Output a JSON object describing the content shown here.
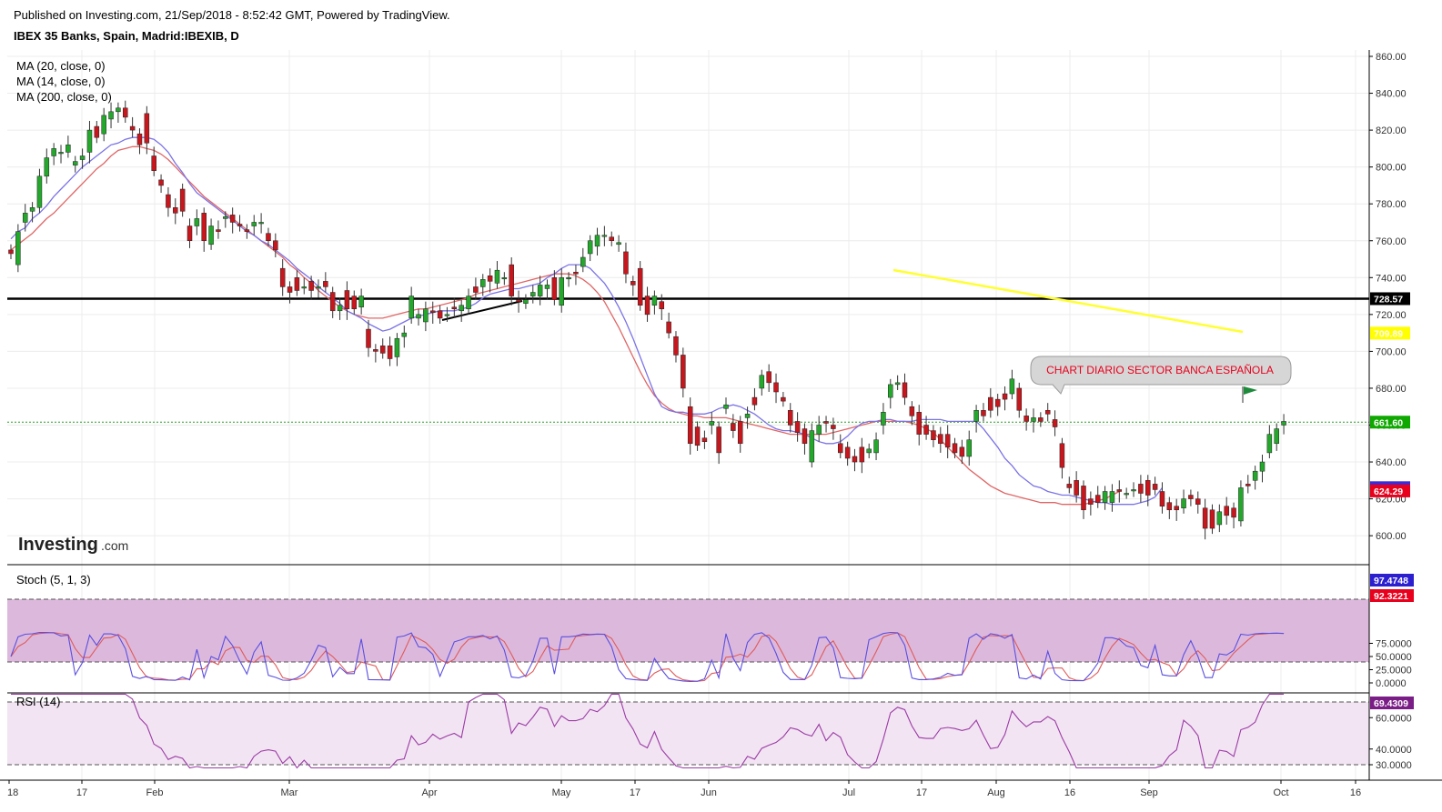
{
  "header": {
    "published": "Published on Investing.com, 21/Sep/2018 - 8:52:42 GMT, Powered by TradingView.",
    "symbol": "IBEX 35 Banks, Spain, Madrid:IBEXIB, D"
  },
  "logo": {
    "brand": "Investing",
    "suffix": ".com"
  },
  "chart_data": [
    {
      "type": "candlestick",
      "title": "IBEX 35 Banks, Spain, Madrid:IBEXIB, D",
      "indicators": [
        "MA (20, close, 0)",
        "MA (14, close, 0)",
        "MA (200, close, 0)"
      ],
      "ylim": [
        595,
        862
      ],
      "y_ticks": [
        "860.00",
        "840.00",
        "820.00",
        "800.00",
        "780.00",
        "760.00",
        "740.00",
        "720.00",
        "700.00",
        "680.00",
        "660.00",
        "640.00",
        "620.00",
        "600.00"
      ],
      "x_ticks": [
        "18",
        "17",
        "Feb",
        "Mar",
        "Apr",
        "May",
        "17",
        "Jun",
        "Jul",
        "17",
        "Aug",
        "16",
        "Sep",
        "Oct",
        "16"
      ],
      "price_tags": [
        {
          "label": "728.57",
          "value": 728.57,
          "color": "#000000"
        },
        {
          "label": "709.89",
          "value": 709.89,
          "color": "#ffff00"
        },
        {
          "label": "661.60",
          "value": 661.6,
          "color": "#0ea800"
        },
        {
          "label": "626.06",
          "value": 626.06,
          "color": "#3d2bd6"
        },
        {
          "label": "624.29",
          "value": 624.29,
          "color": "#e8001c"
        }
      ],
      "horizontal_line": 728.57,
      "last_close_line": 661.6,
      "annotation": "CHART DIARIO SECTOR BANCA ESPAÑOLA",
      "candles": [
        {
          "o": 755,
          "c": 753
        },
        {
          "o": 747,
          "c": 765
        },
        {
          "o": 770,
          "c": 775
        },
        {
          "o": 776,
          "c": 778
        },
        {
          "o": 778,
          "c": 795
        },
        {
          "o": 795,
          "c": 805
        },
        {
          "o": 806,
          "c": 810
        },
        {
          "o": 808,
          "c": 808
        },
        {
          "o": 808,
          "c": 812
        },
        {
          "o": 801,
          "c": 803
        },
        {
          "o": 804,
          "c": 806
        },
        {
          "o": 808,
          "c": 820
        },
        {
          "o": 822,
          "c": 816
        },
        {
          "o": 818,
          "c": 828
        },
        {
          "o": 826,
          "c": 830
        },
        {
          "o": 830,
          "c": 832
        },
        {
          "o": 832,
          "c": 827
        },
        {
          "o": 822,
          "c": 820
        },
        {
          "o": 818,
          "c": 812
        },
        {
          "o": 829,
          "c": 813
        },
        {
          "o": 806,
          "c": 798
        },
        {
          "o": 793,
          "c": 790
        },
        {
          "o": 785,
          "c": 778
        },
        {
          "o": 778,
          "c": 775
        },
        {
          "o": 788,
          "c": 776
        },
        {
          "o": 768,
          "c": 760
        },
        {
          "o": 768,
          "c": 772
        },
        {
          "o": 775,
          "c": 760
        },
        {
          "o": 758,
          "c": 768
        },
        {
          "o": 766,
          "c": 765
        },
        {
          "o": 772,
          "c": 773
        },
        {
          "o": 774,
          "c": 770
        },
        {
          "o": 769,
          "c": 768
        },
        {
          "o": 766,
          "c": 765
        },
        {
          "o": 768,
          "c": 770
        },
        {
          "o": 770,
          "c": 770
        },
        {
          "o": 764,
          "c": 760
        },
        {
          "o": 760,
          "c": 755
        },
        {
          "o": 745,
          "c": 735
        },
        {
          "o": 735,
          "c": 732
        },
        {
          "o": 740,
          "c": 733
        },
        {
          "o": 735,
          "c": 735
        },
        {
          "o": 738,
          "c": 733
        },
        {
          "o": 735,
          "c": 735
        },
        {
          "o": 738,
          "c": 735
        },
        {
          "o": 732,
          "c": 722
        },
        {
          "o": 722,
          "c": 725
        },
        {
          "o": 733,
          "c": 723
        },
        {
          "o": 730,
          "c": 723
        },
        {
          "o": 724,
          "c": 730
        },
        {
          "o": 712,
          "c": 702
        },
        {
          "o": 701,
          "c": 700
        },
        {
          "o": 703,
          "c": 699
        },
        {
          "o": 703,
          "c": 696
        },
        {
          "o": 697,
          "c": 707
        },
        {
          "o": 708,
          "c": 710
        },
        {
          "o": 718,
          "c": 730
        },
        {
          "o": 718,
          "c": 720
        },
        {
          "o": 716,
          "c": 723
        },
        {
          "o": 722,
          "c": 721
        },
        {
          "o": 722,
          "c": 718
        },
        {
          "o": 720,
          "c": 720
        },
        {
          "o": 724,
          "c": 723
        },
        {
          "o": 722,
          "c": 725
        },
        {
          "o": 723,
          "c": 730
        },
        {
          "o": 735,
          "c": 732
        },
        {
          "o": 735,
          "c": 739
        },
        {
          "o": 741,
          "c": 738
        },
        {
          "o": 737,
          "c": 744
        },
        {
          "o": 740,
          "c": 740
        },
        {
          "o": 747,
          "c": 730
        },
        {
          "o": 728,
          "c": 727
        },
        {
          "o": 726,
          "c": 728
        },
        {
          "o": 730,
          "c": 732
        },
        {
          "o": 730,
          "c": 736
        },
        {
          "o": 734,
          "c": 736
        },
        {
          "o": 740,
          "c": 728
        },
        {
          "o": 725,
          "c": 740
        },
        {
          "o": 740,
          "c": 740
        },
        {
          "o": 743,
          "c": 742
        },
        {
          "o": 746,
          "c": 751
        },
        {
          "o": 753,
          "c": 760
        },
        {
          "o": 757,
          "c": 763
        },
        {
          "o": 763,
          "c": 763
        },
        {
          "o": 762,
          "c": 760
        },
        {
          "o": 758,
          "c": 759
        },
        {
          "o": 754,
          "c": 742
        },
        {
          "o": 738,
          "c": 736
        },
        {
          "o": 745,
          "c": 725
        },
        {
          "o": 730,
          "c": 720
        },
        {
          "o": 725,
          "c": 730
        },
        {
          "o": 727,
          "c": 723
        },
        {
          "o": 716,
          "c": 710
        },
        {
          "o": 708,
          "c": 698
        },
        {
          "o": 698,
          "c": 680
        },
        {
          "o": 670,
          "c": 650
        },
        {
          "o": 659,
          "c": 649
        },
        {
          "o": 653,
          "c": 651
        },
        {
          "o": 660,
          "c": 662
        },
        {
          "o": 659,
          "c": 645
        },
        {
          "o": 669,
          "c": 671
        },
        {
          "o": 661,
          "c": 657
        },
        {
          "o": 662,
          "c": 650
        },
        {
          "o": 664,
          "c": 666
        },
        {
          "o": 675,
          "c": 671
        },
        {
          "o": 680,
          "c": 687
        },
        {
          "o": 689,
          "c": 683
        },
        {
          "o": 683,
          "c": 678
        },
        {
          "o": 675,
          "c": 673
        },
        {
          "o": 668,
          "c": 660
        },
        {
          "o": 662,
          "c": 656
        },
        {
          "o": 658,
          "c": 650
        },
        {
          "o": 640,
          "c": 657
        },
        {
          "o": 655,
          "c": 660
        },
        {
          "o": 662,
          "c": 661
        },
        {
          "o": 660,
          "c": 658
        },
        {
          "o": 650,
          "c": 645
        },
        {
          "o": 648,
          "c": 642
        },
        {
          "o": 643,
          "c": 640
        },
        {
          "o": 648,
          "c": 640
        },
        {
          "o": 645,
          "c": 647
        },
        {
          "o": 645,
          "c": 652
        },
        {
          "o": 660,
          "c": 667
        },
        {
          "o": 675,
          "c": 682
        },
        {
          "o": 682,
          "c": 683
        },
        {
          "o": 683,
          "c": 675
        },
        {
          "o": 670,
          "c": 665
        },
        {
          "o": 667,
          "c": 655
        },
        {
          "o": 660,
          "c": 655
        },
        {
          "o": 657,
          "c": 652
        },
        {
          "o": 655,
          "c": 650
        },
        {
          "o": 655,
          "c": 648
        },
        {
          "o": 650,
          "c": 645
        },
        {
          "o": 648,
          "c": 643
        },
        {
          "o": 643,
          "c": 652
        },
        {
          "o": 662,
          "c": 668
        },
        {
          "o": 668,
          "c": 665
        },
        {
          "o": 675,
          "c": 668
        },
        {
          "o": 674,
          "c": 670
        },
        {
          "o": 677,
          "c": 674
        },
        {
          "o": 677,
          "c": 685
        },
        {
          "o": 680,
          "c": 668
        },
        {
          "o": 665,
          "c": 662
        },
        {
          "o": 662,
          "c": 664
        },
        {
          "o": 664,
          "c": 662
        },
        {
          "o": 668,
          "c": 666
        },
        {
          "o": 663,
          "c": 659
        },
        {
          "o": 650,
          "c": 637
        },
        {
          "o": 628,
          "c": 626
        },
        {
          "o": 630,
          "c": 622
        },
        {
          "o": 627,
          "c": 614
        },
        {
          "o": 620,
          "c": 617
        },
        {
          "o": 622,
          "c": 618
        },
        {
          "o": 618,
          "c": 624
        },
        {
          "o": 618,
          "c": 624
        },
        {
          "o": 625,
          "c": 624
        },
        {
          "o": 623,
          "c": 623
        },
        {
          "o": 625,
          "c": 625
        },
        {
          "o": 628,
          "c": 623
        },
        {
          "o": 630,
          "c": 622
        },
        {
          "o": 628,
          "c": 625
        },
        {
          "o": 624,
          "c": 616
        },
        {
          "o": 618,
          "c": 614
        },
        {
          "o": 616,
          "c": 614
        },
        {
          "o": 615,
          "c": 620
        },
        {
          "o": 622,
          "c": 620
        },
        {
          "o": 620,
          "c": 617
        },
        {
          "o": 615,
          "c": 604
        },
        {
          "o": 614,
          "c": 604
        },
        {
          "o": 606,
          "c": 613
        },
        {
          "o": 616,
          "c": 611
        },
        {
          "o": 615,
          "c": 610
        },
        {
          "o": 608,
          "c": 626
        },
        {
          "o": 628,
          "c": 627
        },
        {
          "o": 630,
          "c": 635
        },
        {
          "o": 635,
          "c": 640
        },
        {
          "o": 645,
          "c": 655
        },
        {
          "o": 650,
          "c": 658
        },
        {
          "o": 660,
          "c": 662
        }
      ],
      "ma_blue": [
        761,
        765,
        767,
        772,
        775,
        779,
        784,
        788,
        792,
        796,
        800,
        803,
        806,
        809,
        812,
        813,
        815,
        816,
        816,
        816,
        815,
        812,
        808,
        802,
        797,
        791,
        786,
        783,
        780,
        777,
        774,
        771,
        768,
        765,
        763,
        760,
        758,
        755,
        752,
        749,
        745,
        742,
        739,
        735,
        732,
        729,
        726,
        722,
        720,
        718,
        715,
        713,
        711,
        712,
        714,
        716,
        718,
        719,
        720,
        721,
        722,
        722,
        722,
        723,
        724,
        726,
        729,
        731,
        732,
        733,
        734,
        734,
        735,
        736,
        737,
        740,
        742,
        745,
        747,
        747,
        747,
        745,
        741,
        737,
        731,
        724,
        716,
        707,
        697,
        687,
        677,
        670,
        668,
        667,
        667,
        666,
        666,
        666,
        667,
        669,
        670,
        671,
        670,
        668,
        666,
        663,
        660,
        658,
        657,
        657,
        656,
        655,
        653,
        651,
        650,
        650,
        651,
        654,
        658,
        661,
        662,
        662,
        663,
        663,
        662,
        662,
        662,
        663,
        663,
        663,
        663,
        662,
        662,
        662,
        662,
        662,
        658,
        653,
        648,
        642,
        638,
        633,
        630,
        627,
        626,
        624,
        623,
        622,
        622,
        621,
        620,
        619,
        618,
        618,
        617,
        617,
        617,
        617,
        618,
        619,
        621,
        626
      ],
      "ma_red": [
        755,
        758,
        761,
        764,
        768,
        772,
        775,
        779,
        783,
        787,
        791,
        795,
        799,
        802,
        806,
        809,
        810,
        811,
        811,
        810,
        809,
        807,
        804,
        800,
        796,
        792,
        788,
        784,
        781,
        778,
        775,
        772,
        769,
        766,
        763,
        760,
        757,
        754,
        751,
        747,
        744,
        740,
        737,
        733,
        730,
        727,
        724,
        722,
        720,
        719,
        718,
        718,
        718,
        719,
        720,
        721,
        722,
        723,
        723,
        724,
        725,
        726,
        727,
        728,
        729,
        731,
        732,
        733,
        734,
        735,
        736,
        737,
        738,
        739,
        740,
        741,
        742,
        742,
        742,
        741,
        739,
        736,
        732,
        727,
        720,
        713,
        705,
        697,
        689,
        682,
        676,
        672,
        669,
        667,
        666,
        665,
        665,
        664,
        664,
        664,
        664,
        663,
        662,
        661,
        660,
        659,
        658,
        657,
        656,
        655,
        655,
        655,
        655,
        655,
        655,
        656,
        657,
        658,
        659,
        660,
        661,
        662,
        662,
        662,
        662,
        662,
        661,
        660,
        658,
        656,
        652,
        648,
        644,
        640,
        636,
        633,
        630,
        627,
        625,
        623,
        622,
        621,
        620,
        619,
        618,
        618,
        618,
        617,
        617,
        617,
        617,
        618,
        619,
        620,
        622,
        624
      ]
    },
    {
      "type": "line",
      "title": "Stoch (5, 1, 3)",
      "y_ticks": [
        "75.0000",
        "50.0000",
        "25.0000",
        "0.0000"
      ],
      "ylim": [
        -5,
        105
      ],
      "band": [
        20,
        80
      ],
      "last_values": [
        {
          "label": "97.4748",
          "color": "#2b1fd0"
        },
        {
          "label": "92.3221",
          "color": "#e8001c"
        }
      ]
    },
    {
      "type": "line",
      "title": "RSI (14)",
      "y_ticks": [
        "60.0000",
        "40.0000",
        "30.0000"
      ],
      "ylim": [
        28,
        75
      ],
      "band": [
        30,
        70
      ],
      "last_values": [
        {
          "label": "69.4309",
          "color": "#7a1d86"
        }
      ]
    }
  ]
}
